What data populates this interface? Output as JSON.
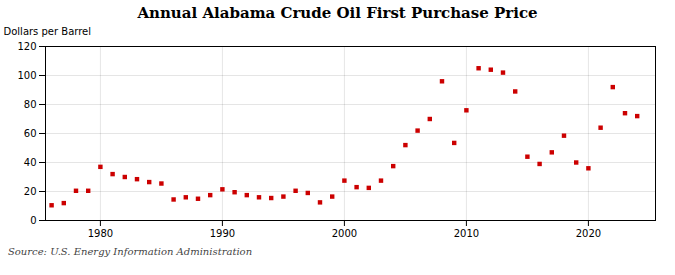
{
  "chart_data": {
    "type": "scatter",
    "title": "Annual Alabama Crude Oil First Purchase Price",
    "ylabel": "Dollars per Barrel",
    "source": "Source: U.S. Energy Information Administration",
    "x": [
      1976,
      1977,
      1978,
      1979,
      1980,
      1981,
      1982,
      1983,
      1984,
      1985,
      1986,
      1987,
      1988,
      1989,
      1990,
      1991,
      1992,
      1993,
      1994,
      1995,
      1996,
      1997,
      1998,
      1999,
      2000,
      2001,
      2002,
      2003,
      2004,
      2005,
      2006,
      2007,
      2008,
      2009,
      2010,
      2011,
      2012,
      2013,
      2014,
      2015,
      2016,
      2017,
      2018,
      2019,
      2020,
      2021,
      2022,
      2023,
      2024
    ],
    "values": [
      10.5,
      12.0,
      20.5,
      20.5,
      37.0,
      32.0,
      30.0,
      28.5,
      26.5,
      25.5,
      14.5,
      16.0,
      15.0,
      17.5,
      21.5,
      19.5,
      17.5,
      16.0,
      15.5,
      16.5,
      20.5,
      19.0,
      12.5,
      16.5,
      27.5,
      23.0,
      22.5,
      27.5,
      37.5,
      52.0,
      62.0,
      70.0,
      96.0,
      53.5,
      76.0,
      105.0,
      104.0,
      102.0,
      89.0,
      44.0,
      39.0,
      47.0,
      58.5,
      40.0,
      36.0,
      64.0,
      92.0,
      74.0,
      72.0
    ],
    "color": "#cc0000",
    "marker": "square",
    "xlim": [
      1975.5,
      2025.5
    ],
    "xticks": [
      1980,
      1990,
      2000,
      2010,
      2020
    ],
    "ylim": [
      0,
      120
    ],
    "yticks": [
      0,
      20,
      40,
      60,
      80,
      100,
      120
    ],
    "grid": true
  }
}
